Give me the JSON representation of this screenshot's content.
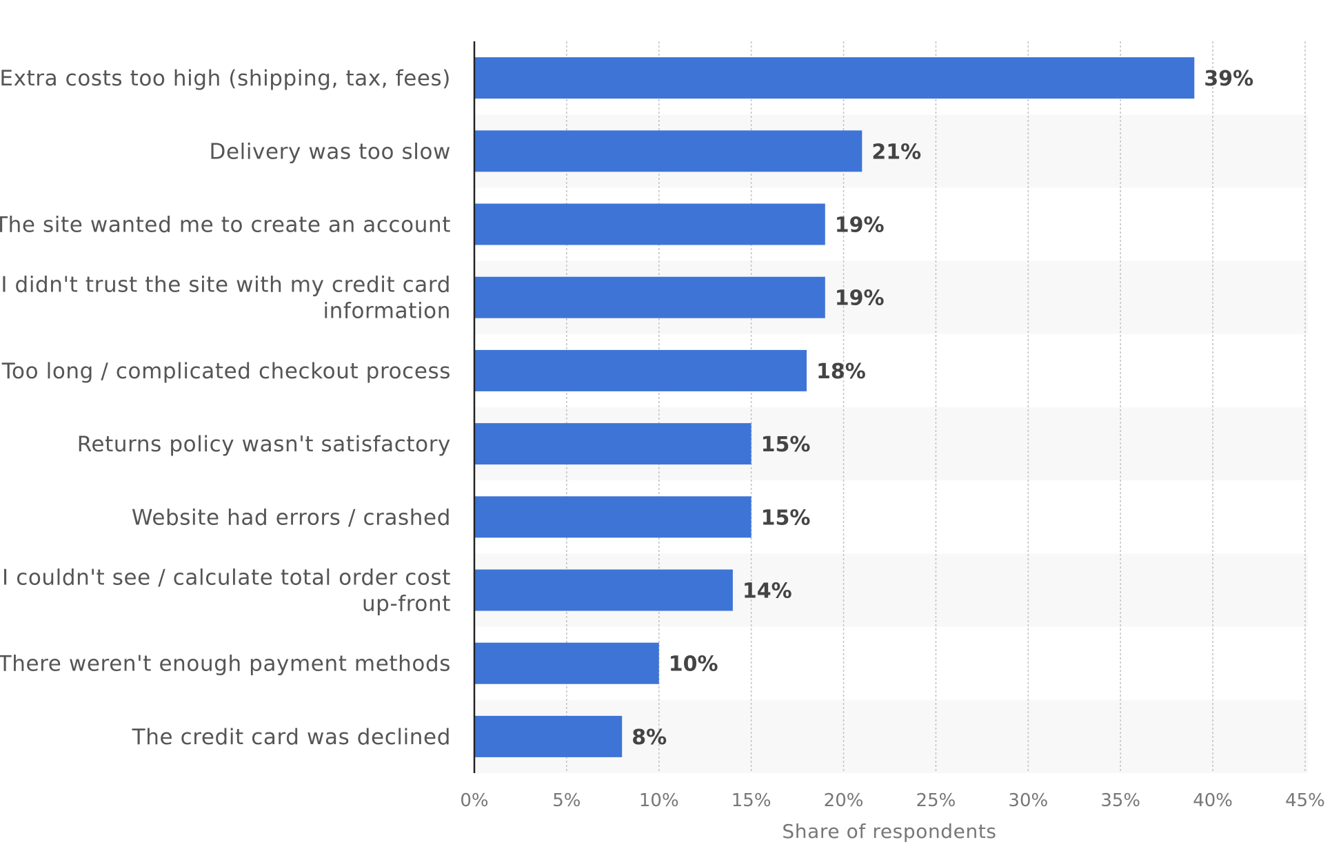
{
  "chart_data": {
    "type": "bar",
    "orientation": "horizontal",
    "categories": [
      "Extra costs too high (shipping, tax, fees)",
      "Delivery was too slow",
      "The site wanted me to create an account",
      "I didn't trust the site with my credit card information",
      "Too long / complicated checkout process",
      "Returns policy wasn't satisfactory",
      "Website had errors / crashed",
      "I couldn't see / calculate total order cost up-front",
      "There weren't enough payment methods",
      "The credit card was declined"
    ],
    "category_lines": [
      [
        "Extra costs too high (shipping, tax, fees)"
      ],
      [
        "Delivery was too slow"
      ],
      [
        "The site wanted me to create an account"
      ],
      [
        "I didn't trust the site with my credit card",
        "information"
      ],
      [
        "Too long / complicated checkout process"
      ],
      [
        "Returns policy wasn't satisfactory"
      ],
      [
        "Website had errors / crashed"
      ],
      [
        "I couldn't see / calculate total order cost",
        "up-front"
      ],
      [
        "There weren't enough payment methods"
      ],
      [
        "The credit card was declined"
      ]
    ],
    "values": [
      39,
      21,
      19,
      19,
      18,
      15,
      15,
      14,
      10,
      8
    ],
    "value_labels": [
      "39%",
      "21%",
      "19%",
      "19%",
      "18%",
      "15%",
      "15%",
      "14%",
      "10%",
      "8%"
    ],
    "xlim": [
      0,
      45
    ],
    "xticks": [
      0,
      5,
      10,
      15,
      20,
      25,
      30,
      35,
      40,
      45
    ],
    "xtick_labels": [
      "0%",
      "5%",
      "10%",
      "15%",
      "20%",
      "25%",
      "30%",
      "35%",
      "40%",
      "45%"
    ],
    "xlabel": "Share of respondents",
    "ylabel": "",
    "title": "",
    "grid": true,
    "legend": "none",
    "bar_color": "#3d74d6",
    "band_color": "#f8f8f8"
  }
}
